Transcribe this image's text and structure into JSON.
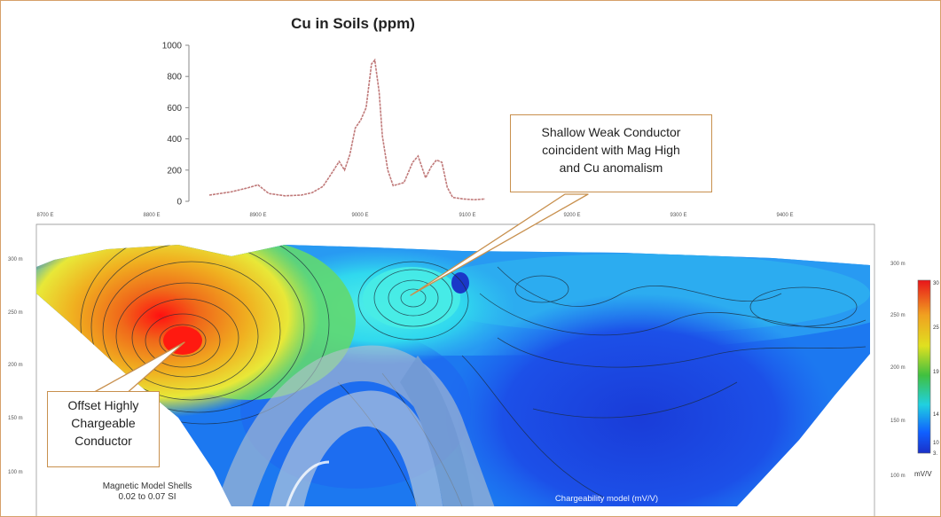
{
  "chart_data": [
    {
      "type": "line",
      "title": "Cu in Soils (ppm)",
      "xlabel": "",
      "ylabel": "",
      "ylim": [
        0,
        1000
      ],
      "yticks": [
        "0",
        "200",
        "400",
        "600",
        "800",
        "1000"
      ],
      "grid": false,
      "color": "#c07a7a",
      "x": [
        8860,
        8880,
        8895,
        8905,
        8915,
        8930,
        8945,
        8955,
        8965,
        8975,
        8980,
        8985,
        8990,
        8995,
        9000,
        9005,
        9010,
        9013,
        9017,
        9020,
        9025,
        9030,
        9040,
        9048,
        9053,
        9060,
        9065,
        9070,
        9075,
        9080,
        9085,
        9095,
        9105,
        9115
      ],
      "y": [
        40,
        60,
        85,
        105,
        50,
        35,
        40,
        55,
        95,
        200,
        255,
        200,
        300,
        470,
        520,
        600,
        880,
        905,
        700,
        420,
        200,
        100,
        120,
        250,
        290,
        150,
        220,
        265,
        250,
        90,
        25,
        15,
        10,
        15
      ]
    },
    {
      "type": "heatmap",
      "x_ticks": [
        "8700 E",
        "8800 E",
        "8900 E",
        "9000 E",
        "9100 E",
        "9200 E",
        "9300 E",
        "9400 E"
      ],
      "y_ticks_left": [
        "300 m",
        "250 m",
        "200 m",
        "150 m",
        "100 m"
      ],
      "y_ticks_right": [
        "300 m",
        "250 m",
        "200 m",
        "150 m",
        "100 m"
      ],
      "colorbar_ticks": [
        "30",
        "25",
        "19",
        "14",
        "10",
        "3."
      ],
      "colorbar_unit": "mV/V",
      "colorbar_colors": [
        "#e8151a",
        "#f0a020",
        "#e0e020",
        "#40c040",
        "#20d0e0",
        "#1060ff",
        "#1a30c8"
      ],
      "annotations": [
        "Magnetic Model Shells",
        "0.02 to 0.07 SI",
        "Chargeability model (mV/V)"
      ]
    }
  ],
  "callouts": {
    "shallow": [
      "Shallow Weak Conductor",
      "coincident with Mag High",
      "and Cu anomalism"
    ],
    "offset": [
      "Offset Highly",
      "Chargeable",
      "Conductor"
    ]
  }
}
